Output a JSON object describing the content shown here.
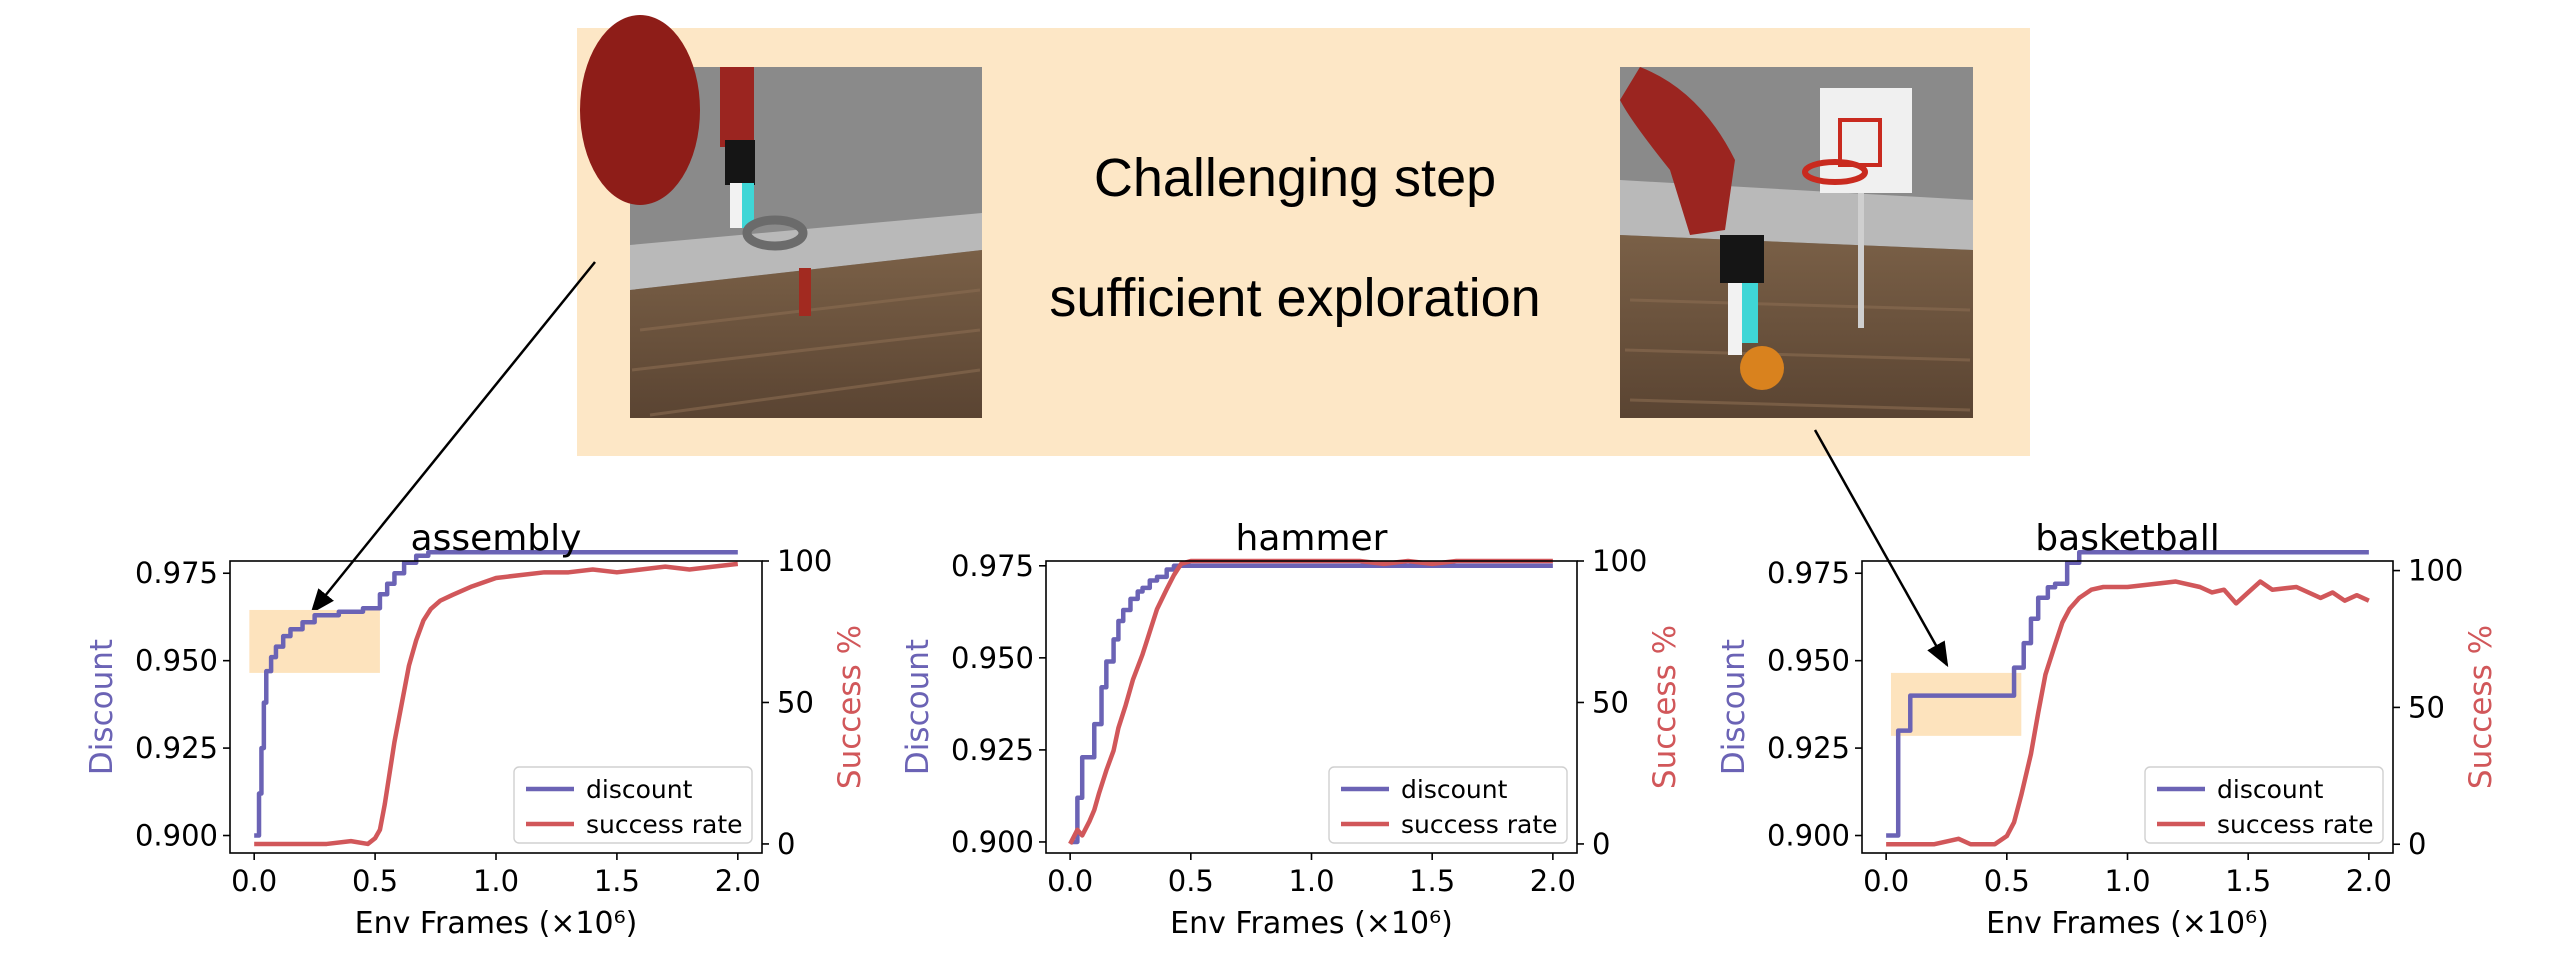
{
  "banner": {
    "line1": "Challenging step",
    "line2": "sufficient exploration",
    "fill": "#fde7c6"
  },
  "colors": {
    "discount": "#6b63b5",
    "success": "#d1575a",
    "highlight": "#fde3bd"
  },
  "chart_data": [
    {
      "type": "line",
      "title": "assembly",
      "xlabel": "Env Frames (×10⁶)",
      "ylabel_left": "Discount",
      "ylabel_right": "Success %",
      "xlim": [
        -0.1,
        2.1
      ],
      "ylim_left": [
        0.895,
        0.9785
      ],
      "ylim_right": [
        -3.2,
        100
      ],
      "x_ticks": [
        "0.0",
        "0.5",
        "1.0",
        "1.5",
        "2.0"
      ],
      "y_ticks_left": [
        "0.900",
        "0.925",
        "0.950",
        "0.975"
      ],
      "y_ticks_right": [
        "0",
        "50",
        "100"
      ],
      "legend": [
        "discount",
        "success rate"
      ],
      "legend_position": "lower right",
      "highlight": {
        "x": [
          -0.02,
          0.52
        ],
        "y": [
          0.9465,
          0.9645
        ]
      },
      "series": [
        {
          "name": "discount",
          "axis": "left",
          "step": true,
          "x": [
            0.0,
            0.02,
            0.03,
            0.04,
            0.05,
            0.07,
            0.09,
            0.12,
            0.15,
            0.2,
            0.25,
            0.35,
            0.45,
            0.5,
            0.52,
            0.55,
            0.58,
            0.62,
            0.67,
            0.72,
            0.8,
            1.0,
            2.0
          ],
          "y": [
            0.9,
            0.912,
            0.925,
            0.938,
            0.947,
            0.951,
            0.954,
            0.957,
            0.959,
            0.961,
            0.963,
            0.964,
            0.965,
            0.965,
            0.969,
            0.972,
            0.975,
            0.978,
            0.98,
            0.981,
            0.981,
            0.981,
            0.981
          ]
        },
        {
          "name": "success rate",
          "axis": "right",
          "step": false,
          "x": [
            0.0,
            0.3,
            0.4,
            0.47,
            0.5,
            0.52,
            0.54,
            0.56,
            0.58,
            0.6,
            0.62,
            0.64,
            0.67,
            0.7,
            0.73,
            0.77,
            0.82,
            0.9,
            1.0,
            1.1,
            1.2,
            1.3,
            1.4,
            1.5,
            1.6,
            1.7,
            1.8,
            1.9,
            2.0
          ],
          "y": [
            0,
            0,
            1,
            0,
            2,
            5,
            14,
            25,
            36,
            45,
            54,
            63,
            72,
            79,
            83,
            86,
            88,
            91,
            94,
            95,
            96,
            96,
            97,
            96,
            97,
            98,
            97,
            98,
            99
          ]
        }
      ]
    },
    {
      "type": "line",
      "title": "hammer",
      "xlabel": "Env Frames (×10⁶)",
      "ylabel_left": "Discount",
      "ylabel_right": "Success %",
      "xlim": [
        -0.1,
        2.1
      ],
      "ylim_left": [
        0.897,
        0.9763
      ],
      "ylim_right": [
        -3.2,
        100
      ],
      "x_ticks": [
        "0.0",
        "0.5",
        "1.0",
        "1.5",
        "2.0"
      ],
      "y_ticks_left": [
        "0.900",
        "0.925",
        "0.950",
        "0.975"
      ],
      "y_ticks_right": [
        "0",
        "50",
        "100"
      ],
      "legend": [
        "discount",
        "success rate"
      ],
      "legend_position": "lower right",
      "series": [
        {
          "name": "discount",
          "axis": "left",
          "step": true,
          "x": [
            0.0,
            0.03,
            0.05,
            0.07,
            0.1,
            0.13,
            0.15,
            0.18,
            0.2,
            0.22,
            0.25,
            0.28,
            0.3,
            0.33,
            0.36,
            0.4,
            0.43,
            0.45,
            0.5,
            1.0,
            1.5,
            2.0
          ],
          "y": [
            0.9,
            0.912,
            0.923,
            0.923,
            0.932,
            0.942,
            0.949,
            0.955,
            0.96,
            0.963,
            0.966,
            0.968,
            0.969,
            0.971,
            0.972,
            0.974,
            0.975,
            0.975,
            0.975,
            0.975,
            0.975,
            0.975
          ]
        },
        {
          "name": "success rate",
          "axis": "right",
          "step": false,
          "x": [
            0.0,
            0.03,
            0.05,
            0.08,
            0.1,
            0.12,
            0.15,
            0.18,
            0.2,
            0.23,
            0.26,
            0.3,
            0.33,
            0.36,
            0.4,
            0.43,
            0.46,
            0.5,
            0.8,
            1.2,
            1.3,
            1.4,
            1.5,
            1.6,
            2.0
          ],
          "y": [
            0,
            5,
            3,
            8,
            12,
            18,
            26,
            33,
            41,
            49,
            58,
            67,
            75,
            83,
            90,
            95,
            99,
            100,
            100,
            100,
            99,
            100,
            99,
            100,
            100
          ]
        }
      ]
    },
    {
      "type": "line",
      "title": "basketball",
      "xlabel": "Env Frames (×10⁶)",
      "ylabel_left": "Discount",
      "ylabel_right": "Success %",
      "xlim": [
        -0.1,
        2.1
      ],
      "ylim_left": [
        0.895,
        0.9785
      ],
      "ylim_right": [
        -3.2,
        103.5
      ],
      "x_ticks": [
        "0.0",
        "0.5",
        "1.0",
        "1.5",
        "2.0"
      ],
      "y_ticks_left": [
        "0.900",
        "0.925",
        "0.950",
        "0.975"
      ],
      "y_ticks_right": [
        "0",
        "50",
        "100"
      ],
      "legend": [
        "discount",
        "success rate"
      ],
      "legend_position": "lower right",
      "highlight": {
        "x": [
          0.02,
          0.56
        ],
        "y": [
          0.9285,
          0.9465
        ]
      },
      "series": [
        {
          "name": "discount",
          "axis": "left",
          "step": true,
          "x": [
            0.0,
            0.05,
            0.07,
            0.1,
            0.35,
            0.45,
            0.53,
            0.57,
            0.6,
            0.63,
            0.67,
            0.7,
            0.75,
            0.8,
            1.0,
            2.0
          ],
          "y": [
            0.9,
            0.93,
            0.93,
            0.94,
            0.94,
            0.94,
            0.948,
            0.955,
            0.962,
            0.968,
            0.971,
            0.972,
            0.978,
            0.981,
            0.981,
            0.981
          ]
        },
        {
          "name": "success rate",
          "axis": "right",
          "step": false,
          "x": [
            0.0,
            0.2,
            0.3,
            0.35,
            0.4,
            0.45,
            0.5,
            0.53,
            0.56,
            0.6,
            0.63,
            0.66,
            0.7,
            0.73,
            0.76,
            0.8,
            0.85,
            0.9,
            1.0,
            1.1,
            1.2,
            1.3,
            1.35,
            1.4,
            1.45,
            1.5,
            1.55,
            1.6,
            1.7,
            1.8,
            1.85,
            1.9,
            1.95,
            2.0
          ],
          "y": [
            0,
            0,
            2,
            0,
            0,
            0,
            3,
            8,
            18,
            33,
            48,
            62,
            73,
            81,
            86,
            90,
            93,
            94,
            94,
            95,
            96,
            94,
            92,
            93,
            88,
            92,
            96,
            93,
            94,
            90,
            92,
            89,
            91,
            89
          ]
        }
      ]
    }
  ]
}
